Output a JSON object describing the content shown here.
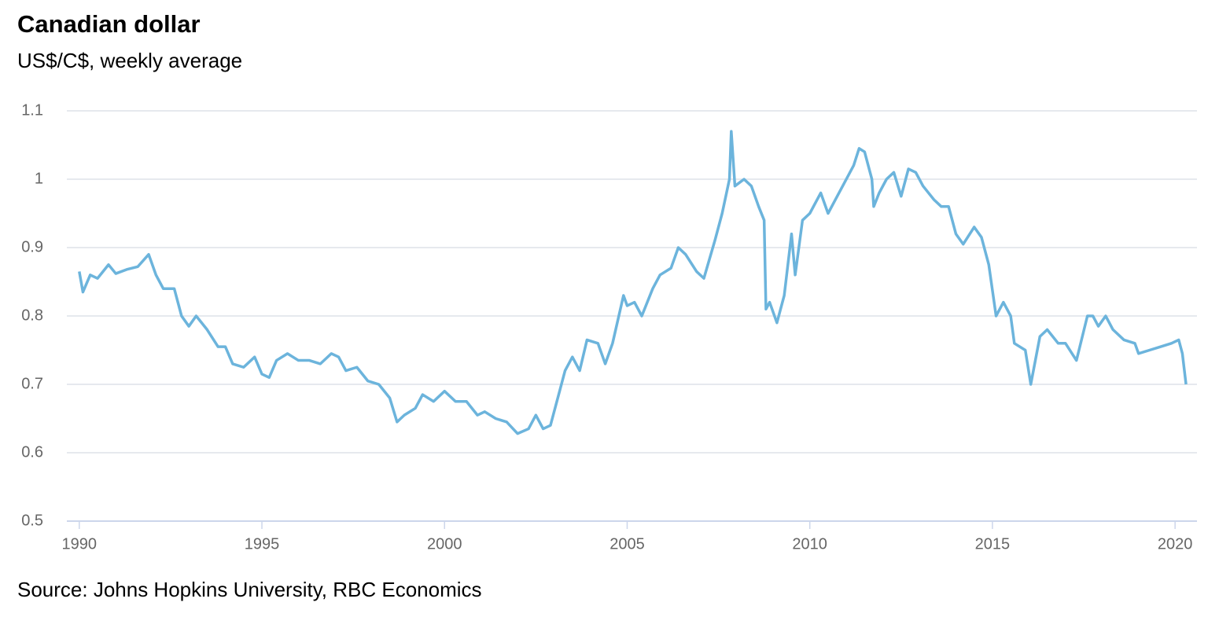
{
  "chart_data": {
    "type": "line",
    "title": "Canadian dollar",
    "subtitle": "US$/C$, weekly average",
    "source": "Source: Johns Hopkins University, RBC Economics",
    "color": "#6cb4dc",
    "grid": true,
    "xlim": [
      1989.66,
      2020.6
    ],
    "xticks": [
      1990,
      1995,
      2000,
      2005,
      2010,
      2015,
      2020
    ],
    "ylim": [
      0.5,
      1.1
    ],
    "yticks": [
      0.5,
      0.6,
      0.7,
      0.8,
      0.9,
      1,
      1.1
    ],
    "x": [
      1990.0,
      1990.1,
      1990.3,
      1990.5,
      1990.8,
      1991.0,
      1991.3,
      1991.6,
      1991.9,
      1992.1,
      1992.3,
      1992.6,
      1992.8,
      1993.0,
      1993.2,
      1993.5,
      1993.8,
      1994.0,
      1994.2,
      1994.5,
      1994.8,
      1995.0,
      1995.2,
      1995.4,
      1995.7,
      1996.0,
      1996.3,
      1996.6,
      1996.9,
      1997.1,
      1997.3,
      1997.6,
      1997.9,
      1998.2,
      1998.5,
      1998.7,
      1998.9,
      1999.2,
      1999.4,
      1999.7,
      2000.0,
      2000.3,
      2000.6,
      2000.9,
      2001.1,
      2001.4,
      2001.7,
      2002.0,
      2002.3,
      2002.5,
      2002.7,
      2002.9,
      2003.1,
      2003.3,
      2003.5,
      2003.7,
      2003.9,
      2004.2,
      2004.4,
      2004.6,
      2004.9,
      2005.0,
      2005.2,
      2005.4,
      2005.7,
      2005.9,
      2006.2,
      2006.4,
      2006.6,
      2006.9,
      2007.1,
      2007.4,
      2007.6,
      2007.8,
      2007.85,
      2007.95,
      2008.2,
      2008.4,
      2008.6,
      2008.75,
      2008.8,
      2008.9,
      2009.1,
      2009.3,
      2009.5,
      2009.6,
      2009.8,
      2010.0,
      2010.3,
      2010.5,
      2010.7,
      2010.9,
      2011.2,
      2011.35,
      2011.5,
      2011.7,
      2011.75,
      2011.9,
      2012.1,
      2012.3,
      2012.5,
      2012.7,
      2012.9,
      2013.1,
      2013.4,
      2013.6,
      2013.8,
      2014.0,
      2014.2,
      2014.5,
      2014.7,
      2014.9,
      2015.1,
      2015.3,
      2015.5,
      2015.6,
      2015.9,
      2016.05,
      2016.3,
      2016.5,
      2016.8,
      2017.0,
      2017.3,
      2017.6,
      2017.75,
      2017.9,
      2018.1,
      2018.3,
      2018.6,
      2018.9,
      2019.0,
      2019.3,
      2019.6,
      2019.9,
      2020.1,
      2020.2,
      2020.3
    ],
    "values": [
      0.865,
      0.835,
      0.86,
      0.855,
      0.875,
      0.862,
      0.868,
      0.872,
      0.89,
      0.86,
      0.84,
      0.84,
      0.8,
      0.785,
      0.8,
      0.78,
      0.755,
      0.755,
      0.73,
      0.725,
      0.74,
      0.715,
      0.71,
      0.735,
      0.745,
      0.735,
      0.735,
      0.73,
      0.745,
      0.74,
      0.72,
      0.725,
      0.705,
      0.7,
      0.68,
      0.645,
      0.655,
      0.665,
      0.685,
      0.675,
      0.69,
      0.675,
      0.675,
      0.655,
      0.66,
      0.65,
      0.645,
      0.628,
      0.635,
      0.655,
      0.635,
      0.64,
      0.68,
      0.72,
      0.74,
      0.72,
      0.765,
      0.76,
      0.73,
      0.76,
      0.83,
      0.815,
      0.82,
      0.8,
      0.84,
      0.86,
      0.87,
      0.9,
      0.89,
      0.865,
      0.855,
      0.91,
      0.95,
      1.0,
      1.07,
      0.99,
      1.0,
      0.99,
      0.96,
      0.94,
      0.81,
      0.82,
      0.79,
      0.83,
      0.92,
      0.86,
      0.94,
      0.95,
      0.98,
      0.95,
      0.97,
      0.99,
      1.02,
      1.045,
      1.04,
      1.0,
      0.96,
      0.98,
      1.0,
      1.01,
      0.975,
      1.015,
      1.01,
      0.99,
      0.97,
      0.96,
      0.96,
      0.92,
      0.905,
      0.93,
      0.915,
      0.875,
      0.8,
      0.82,
      0.8,
      0.76,
      0.75,
      0.7,
      0.77,
      0.78,
      0.76,
      0.76,
      0.735,
      0.8,
      0.8,
      0.785,
      0.8,
      0.78,
      0.765,
      0.76,
      0.745,
      0.75,
      0.755,
      0.76,
      0.765,
      0.745,
      0.7
    ]
  }
}
